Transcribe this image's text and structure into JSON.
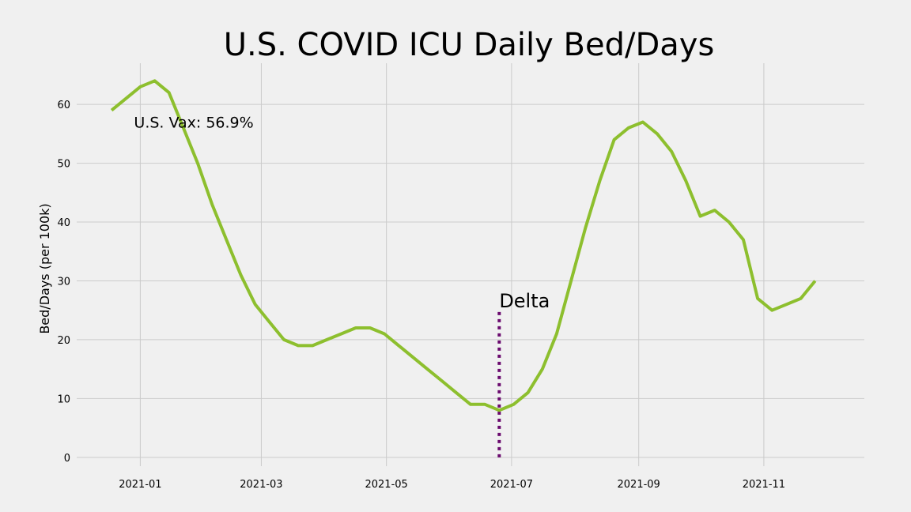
{
  "chart_data": {
    "type": "line",
    "title": "U.S. COVID ICU Daily Bed/Days",
    "ylabel": "Bed/Days (per 100k)",
    "xlabel": "",
    "x_range": [
      "2020-12-01",
      "2021-12-20"
    ],
    "ylim": [
      -1.5,
      67
    ],
    "x_ticks": [
      "2021-01-01",
      "2021-03-01",
      "2021-05-01",
      "2021-07-01",
      "2021-09-01",
      "2021-11-01"
    ],
    "x_tick_labels": [
      "2021-01",
      "2021-03",
      "2021-05",
      "2021-07",
      "2021-09",
      "2021-11"
    ],
    "y_ticks": [
      0,
      10,
      20,
      30,
      40,
      50,
      60
    ],
    "y_tick_labels": [
      "0",
      "10",
      "20",
      "30",
      "40",
      "50",
      "60"
    ],
    "grid": true,
    "series": [
      {
        "name": "",
        "color": "#8dbf2e",
        "x": [
          "2020-12-18",
          "2021-01-01",
          "2021-01-08",
          "2021-01-15",
          "2021-01-22",
          "2021-01-29",
          "2021-02-05",
          "2021-02-12",
          "2021-02-19",
          "2021-02-26",
          "2021-03-05",
          "2021-03-12",
          "2021-03-19",
          "2021-03-26",
          "2021-04-02",
          "2021-04-09",
          "2021-04-16",
          "2021-04-23",
          "2021-04-30",
          "2021-05-07",
          "2021-05-14",
          "2021-05-21",
          "2021-05-28",
          "2021-06-04",
          "2021-06-11",
          "2021-06-18",
          "2021-06-25",
          "2021-07-02",
          "2021-07-09",
          "2021-07-16",
          "2021-07-23",
          "2021-07-30",
          "2021-08-06",
          "2021-08-13",
          "2021-08-20",
          "2021-08-27",
          "2021-09-03",
          "2021-09-10",
          "2021-09-17",
          "2021-09-24",
          "2021-10-01",
          "2021-10-08",
          "2021-10-15",
          "2021-10-22",
          "2021-10-29",
          "2021-11-05",
          "2021-11-12",
          "2021-11-19",
          "2021-11-26"
        ],
        "values": [
          59,
          63,
          64,
          62,
          56,
          50,
          43,
          37,
          31,
          26,
          23,
          20,
          19,
          19,
          20,
          21,
          22,
          22,
          21,
          19,
          17,
          15,
          13,
          11,
          9,
          9,
          8,
          9,
          11,
          15,
          21,
          30,
          39,
          47,
          54,
          56,
          57,
          55,
          52,
          47,
          41,
          42,
          40,
          37,
          27,
          25,
          26,
          27,
          30
        ]
      }
    ],
    "annotations": [
      {
        "text": "U.S. Vax: 56.9%",
        "x": "2021-01-01",
        "y": 57
      },
      {
        "text": "Delta",
        "x": "2021-06-25",
        "y": 25.5
      }
    ],
    "vlines": [
      {
        "x": "2021-06-25",
        "y_from": 0,
        "y_to": 25,
        "color": "#6a0a6e",
        "style": "dotted"
      }
    ]
  }
}
